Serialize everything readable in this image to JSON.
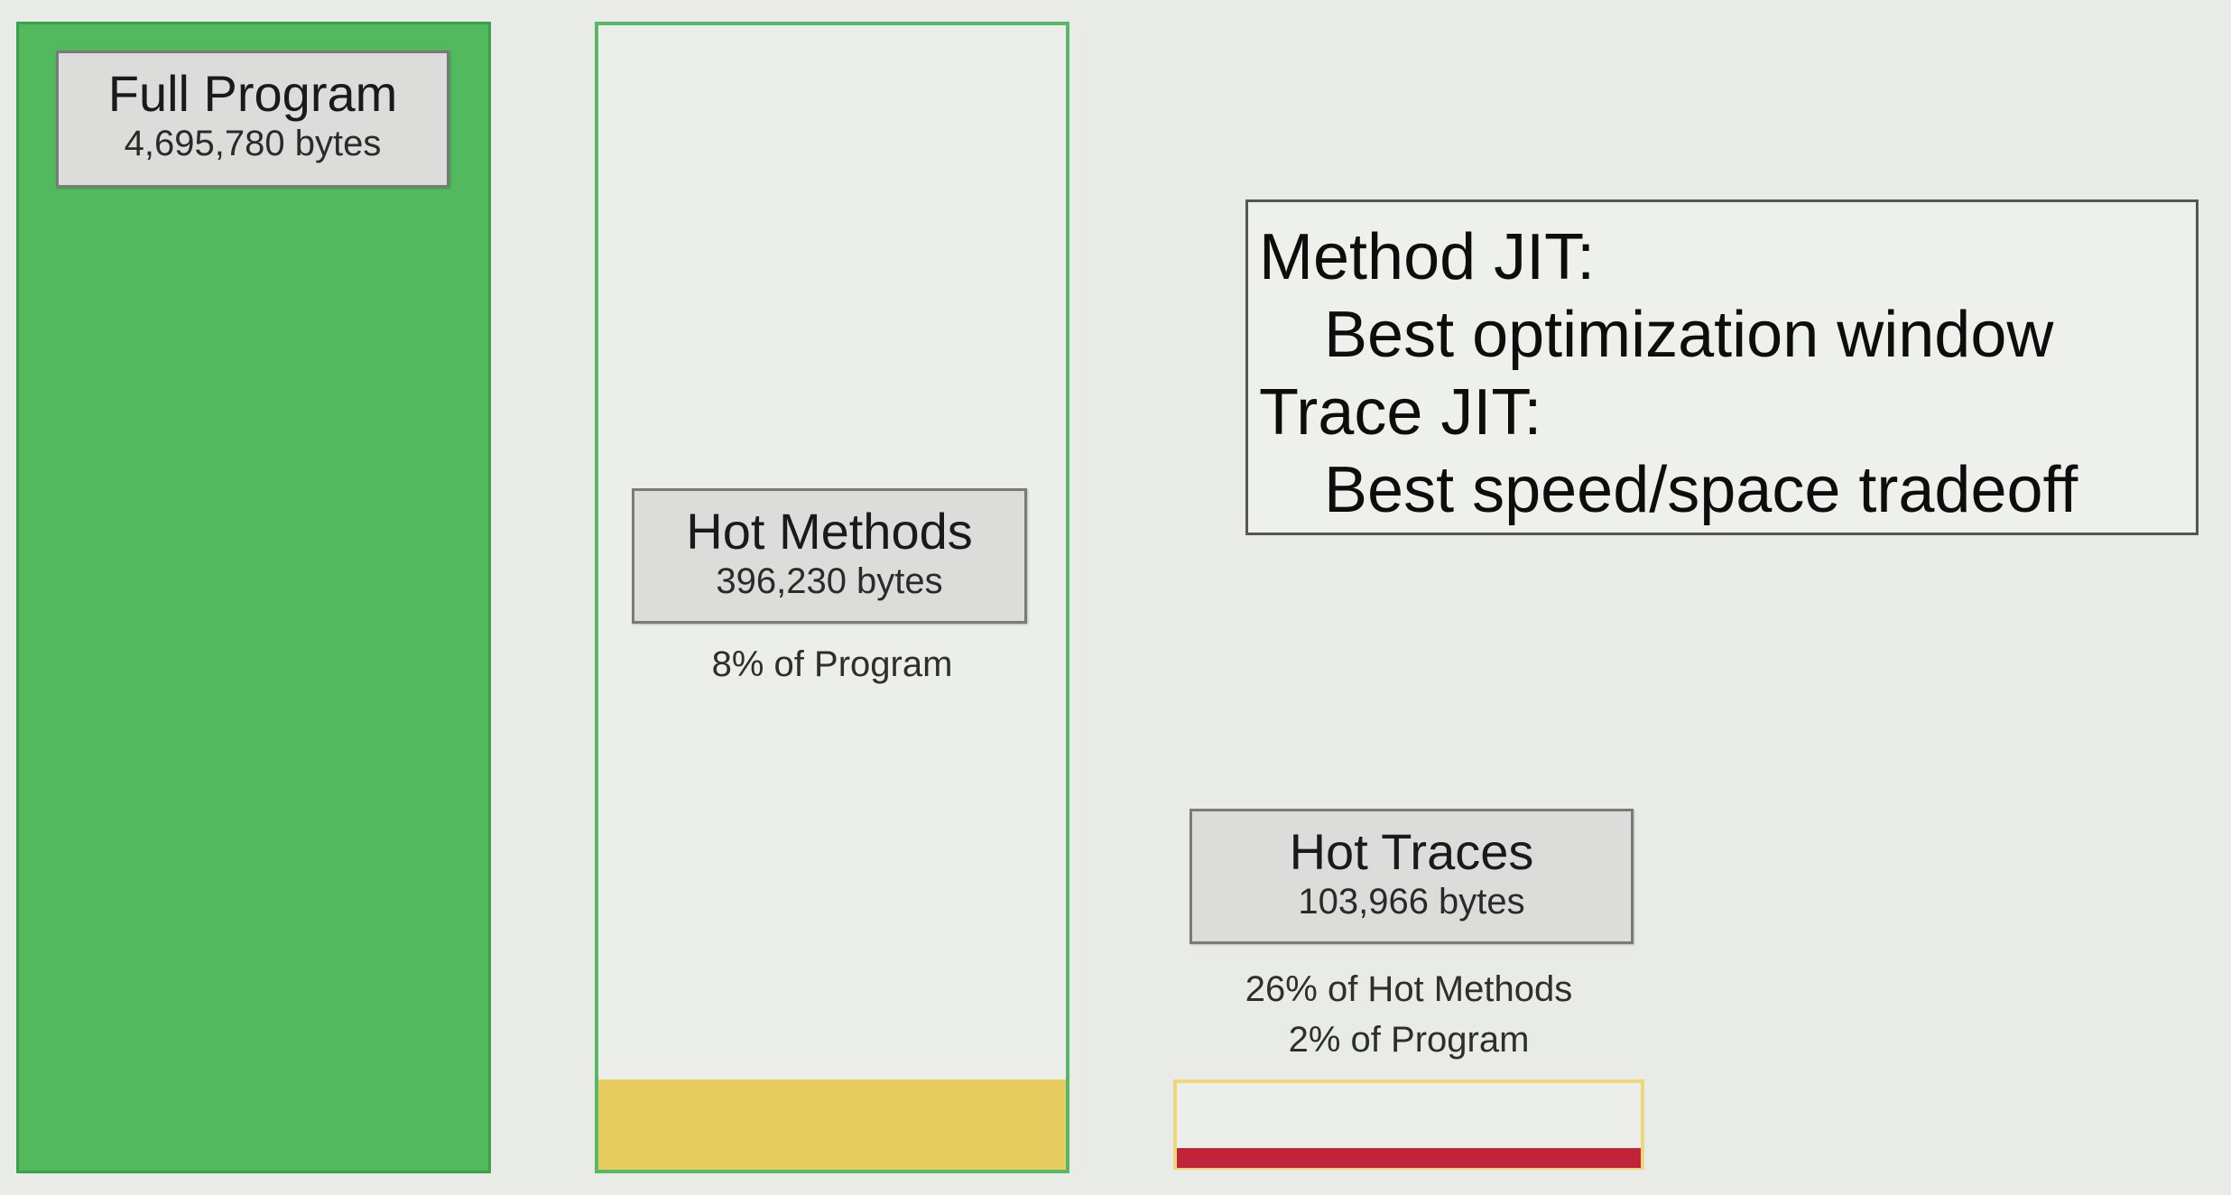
{
  "full_program": {
    "title": "Full Program",
    "bytes": "4,695,780 bytes"
  },
  "hot_methods": {
    "title": "Hot Methods",
    "bytes": "396,230 bytes",
    "note": "8% of Program"
  },
  "hot_traces": {
    "title": "Hot Traces",
    "bytes": "103,966 bytes",
    "note_1": "26% of Hot Methods",
    "note_2": "2% of Program"
  },
  "jit_box": {
    "method_heading": "Method JIT:",
    "method_detail": "Best optimization window",
    "trace_heading": "Trace JIT:",
    "trace_detail": "Best speed/space tradeoff"
  },
  "colors": {
    "full_program_fill": "#52b95f",
    "hot_methods_fill": "#e7cc60",
    "hot_traces_fill": "#c0233a",
    "background": "#e9ebe7"
  }
}
